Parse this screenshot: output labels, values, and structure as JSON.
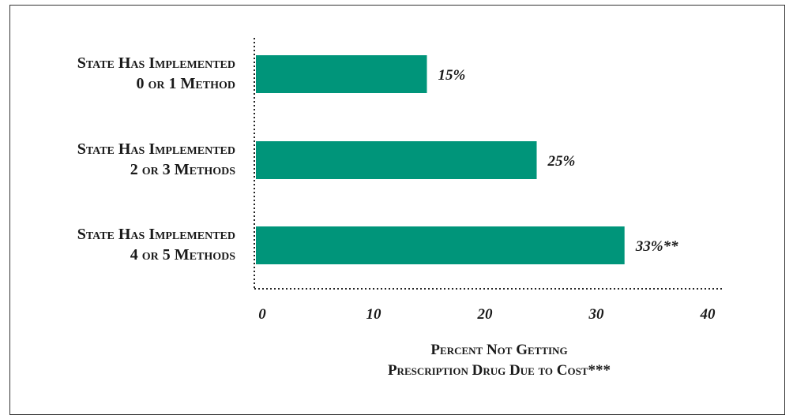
{
  "chart_data": {
    "type": "bar",
    "orientation": "horizontal",
    "categories": [
      [
        "State Has Implemented",
        "0 or 1 Method"
      ],
      [
        "State Has Implemented",
        "2 or 3 Methods"
      ],
      [
        "State Has Implemented",
        "4 or 5 Methods"
      ]
    ],
    "values": [
      15,
      25,
      33
    ],
    "data_labels": [
      "15%",
      "25%",
      "33%**"
    ],
    "xlabel": [
      "Percent Not Getting",
      "Prescription Drug Due to Cost***"
    ],
    "xlim": [
      0,
      40
    ],
    "xticks": [
      0,
      10,
      20,
      30,
      40
    ],
    "bar_color": "#00957a",
    "axis_style": "dotted",
    "grid": false
  }
}
